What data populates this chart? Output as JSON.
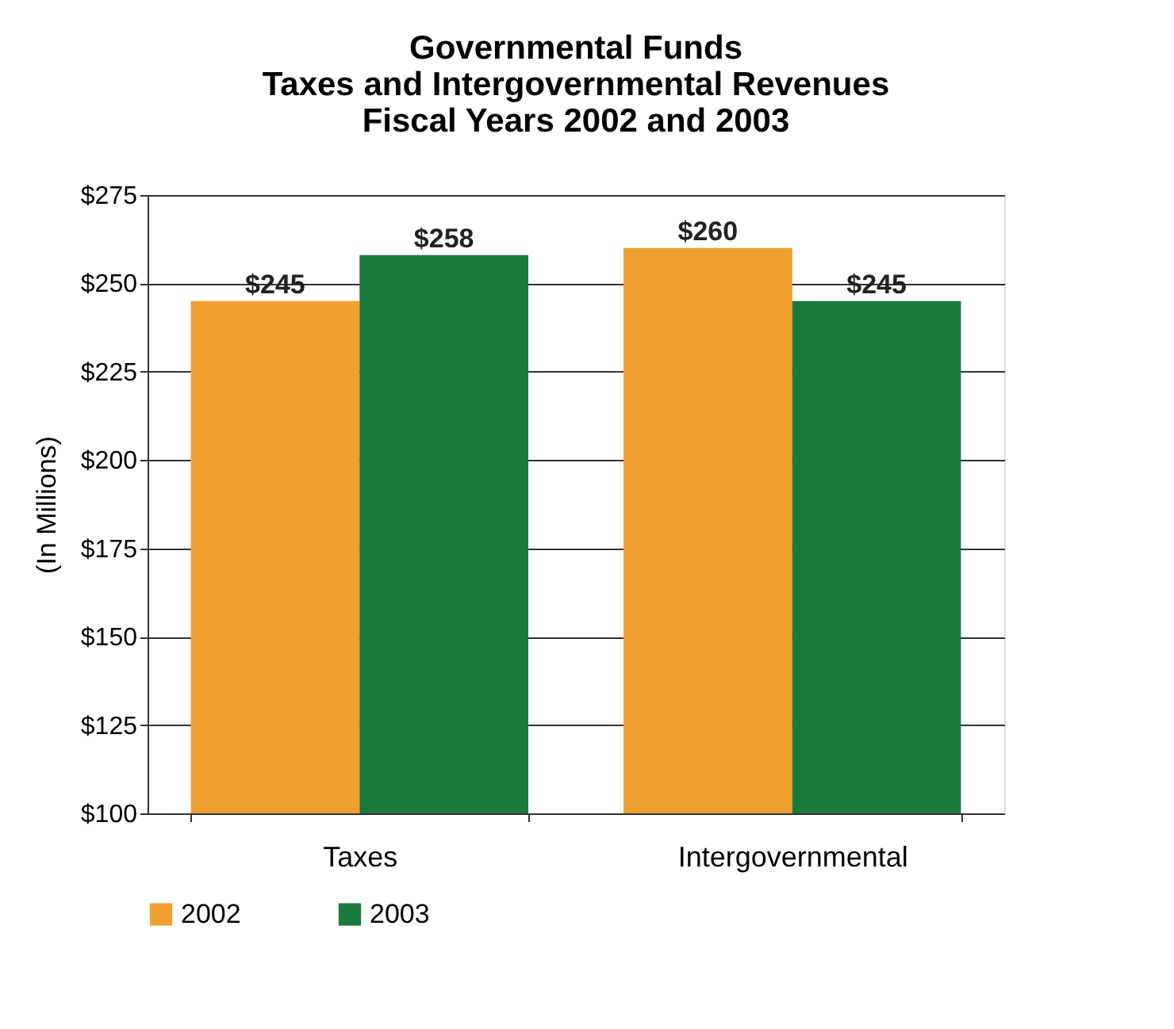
{
  "chart_data": {
    "type": "bar",
    "title": [
      "Governmental Funds",
      "Taxes and Intergovernmental Revenues",
      "Fiscal Years 2002 and 2003"
    ],
    "ylabel": "(In Millions)",
    "categories": [
      "Taxes",
      "Intergovernmental"
    ],
    "series": [
      {
        "name": "2002",
        "color": "#f0a030",
        "values": [
          245,
          260
        ],
        "value_labels": [
          "$245",
          "$260"
        ]
      },
      {
        "name": "2003",
        "color": "#1a7a3c",
        "values": [
          258,
          245
        ],
        "value_labels": [
          "$258",
          "$245"
        ]
      }
    ],
    "ylim": [
      100,
      275
    ],
    "yticks": [
      {
        "value": 100,
        "label": "$100"
      },
      {
        "value": 125,
        "label": "$125"
      },
      {
        "value": 150,
        "label": "$150"
      },
      {
        "value": 175,
        "label": "$175"
      },
      {
        "value": 200,
        "label": "$200"
      },
      {
        "value": 225,
        "label": "$225"
      },
      {
        "value": 250,
        "label": "$250"
      },
      {
        "value": 275,
        "label": "$275"
      }
    ],
    "grid": "y",
    "legend": "bottom"
  }
}
